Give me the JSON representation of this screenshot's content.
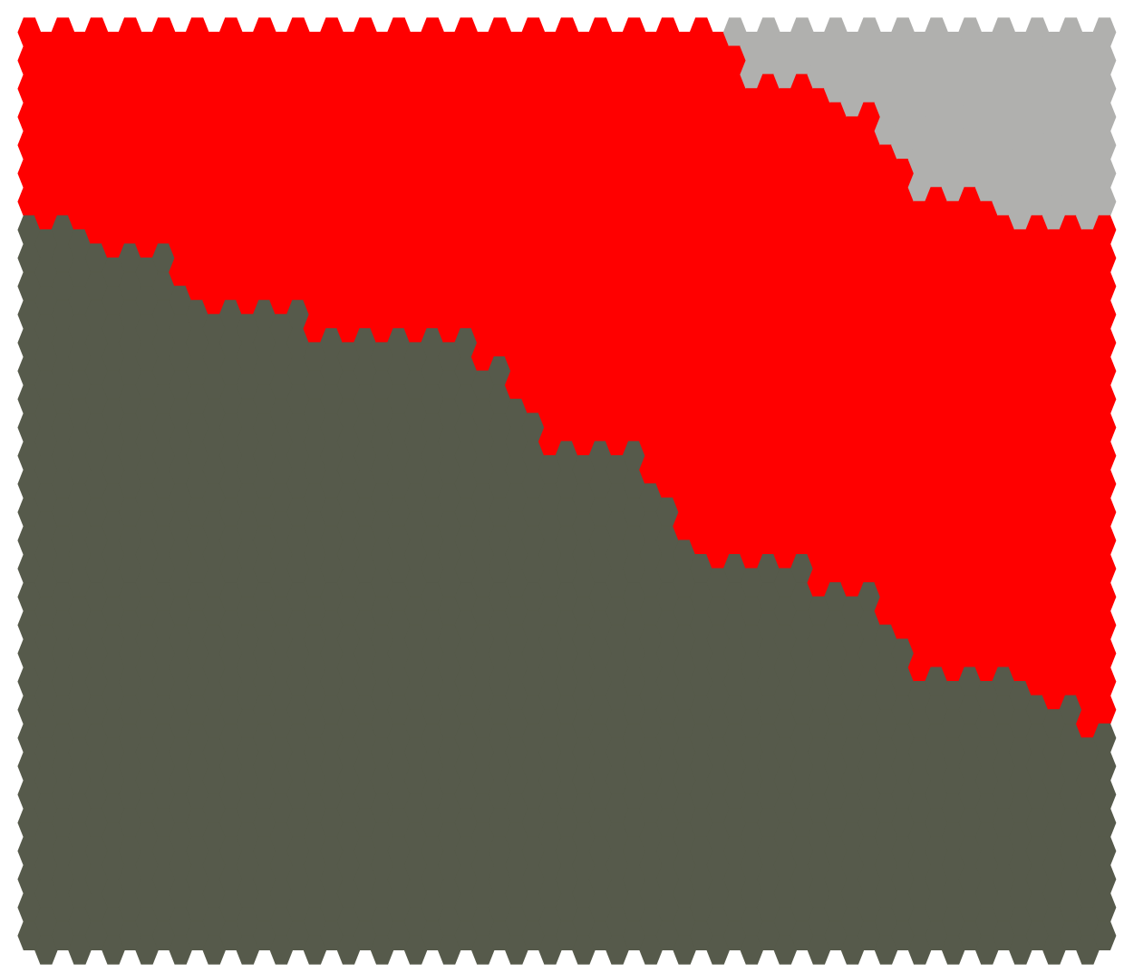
{
  "board": {
    "background": "#ffffff",
    "columns": 65,
    "rows": 33,
    "colors": {
      "gray": "#b0b0ae",
      "red": "#ff0000",
      "olive": "#565a4b"
    },
    "regions": [
      {
        "name": "gray-region",
        "color_key": "gray",
        "boundary": [
          {
            "from": 42,
            "to": 64,
            "red_above_grey_rows": 0
          },
          {
            "from": 43,
            "to": 64,
            "rows": 1
          },
          {
            "from": 48,
            "to": 64,
            "rows": 2
          },
          {
            "from": 51,
            "to": 64,
            "rows": 3
          },
          {
            "from": 52,
            "to": 64,
            "rows": 4
          },
          {
            "from": 53,
            "to": 64,
            "rows": 5
          },
          {
            "from": 58,
            "to": 64,
            "rows": 6
          }
        ]
      },
      {
        "name": "red-region",
        "color_key": "red"
      },
      {
        "name": "olive-region",
        "color_key": "olive",
        "boundary_start_by_column": [
          7,
          7,
          7,
          7,
          8,
          8,
          8,
          8,
          8,
          9,
          10,
          10,
          10,
          10,
          10,
          10,
          10,
          11,
          11,
          11,
          11,
          11,
          11,
          11,
          11,
          11,
          11,
          12,
          12,
          13,
          14,
          15,
          15,
          15,
          15,
          15,
          15,
          16,
          17,
          18,
          19,
          19,
          19,
          19,
          19,
          19,
          19,
          20,
          20,
          20,
          20,
          21,
          22,
          23,
          23,
          23,
          23,
          23,
          23,
          23,
          24,
          24,
          24,
          25,
          25
        ]
      }
    ]
  }
}
